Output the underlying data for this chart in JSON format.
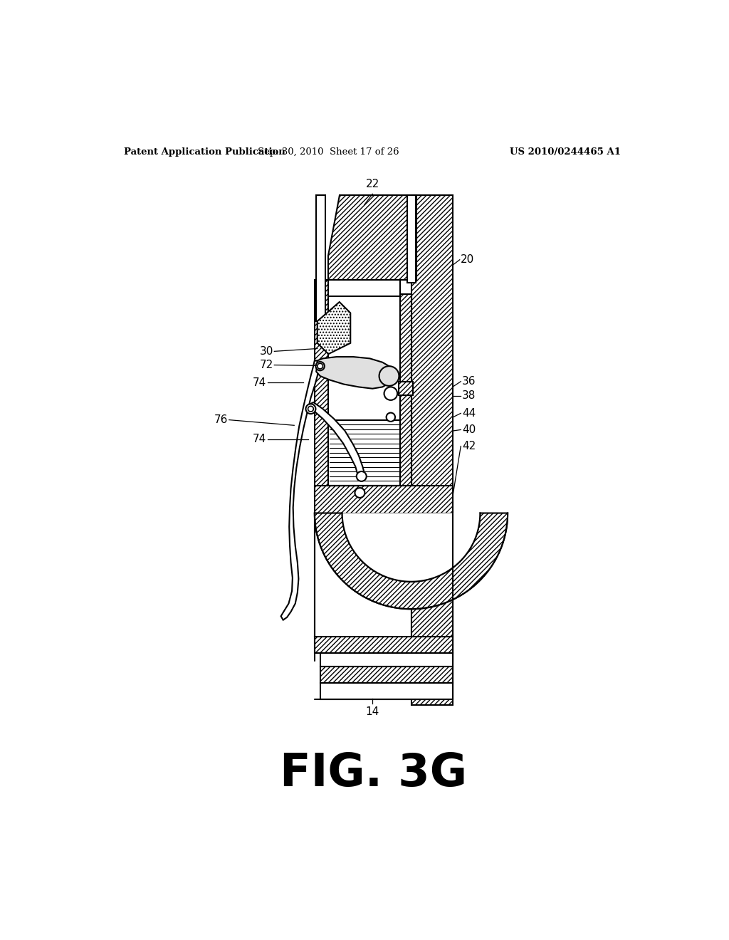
{
  "bg_color": "#ffffff",
  "header_left": "Patent Application Publication",
  "header_center": "Sep. 30, 2010  Sheet 17 of 26",
  "header_right": "US 2010/0244465 A1",
  "fig_label": "FIG. 3G",
  "fig_label_size": 46,
  "header_fontsize": 9.5,
  "label_fontsize": 11,
  "lw_main": 1.5,
  "lw_thin": 0.9,
  "hatch_density": "/////",
  "dot_hatch": "....",
  "line_hatch": "----"
}
